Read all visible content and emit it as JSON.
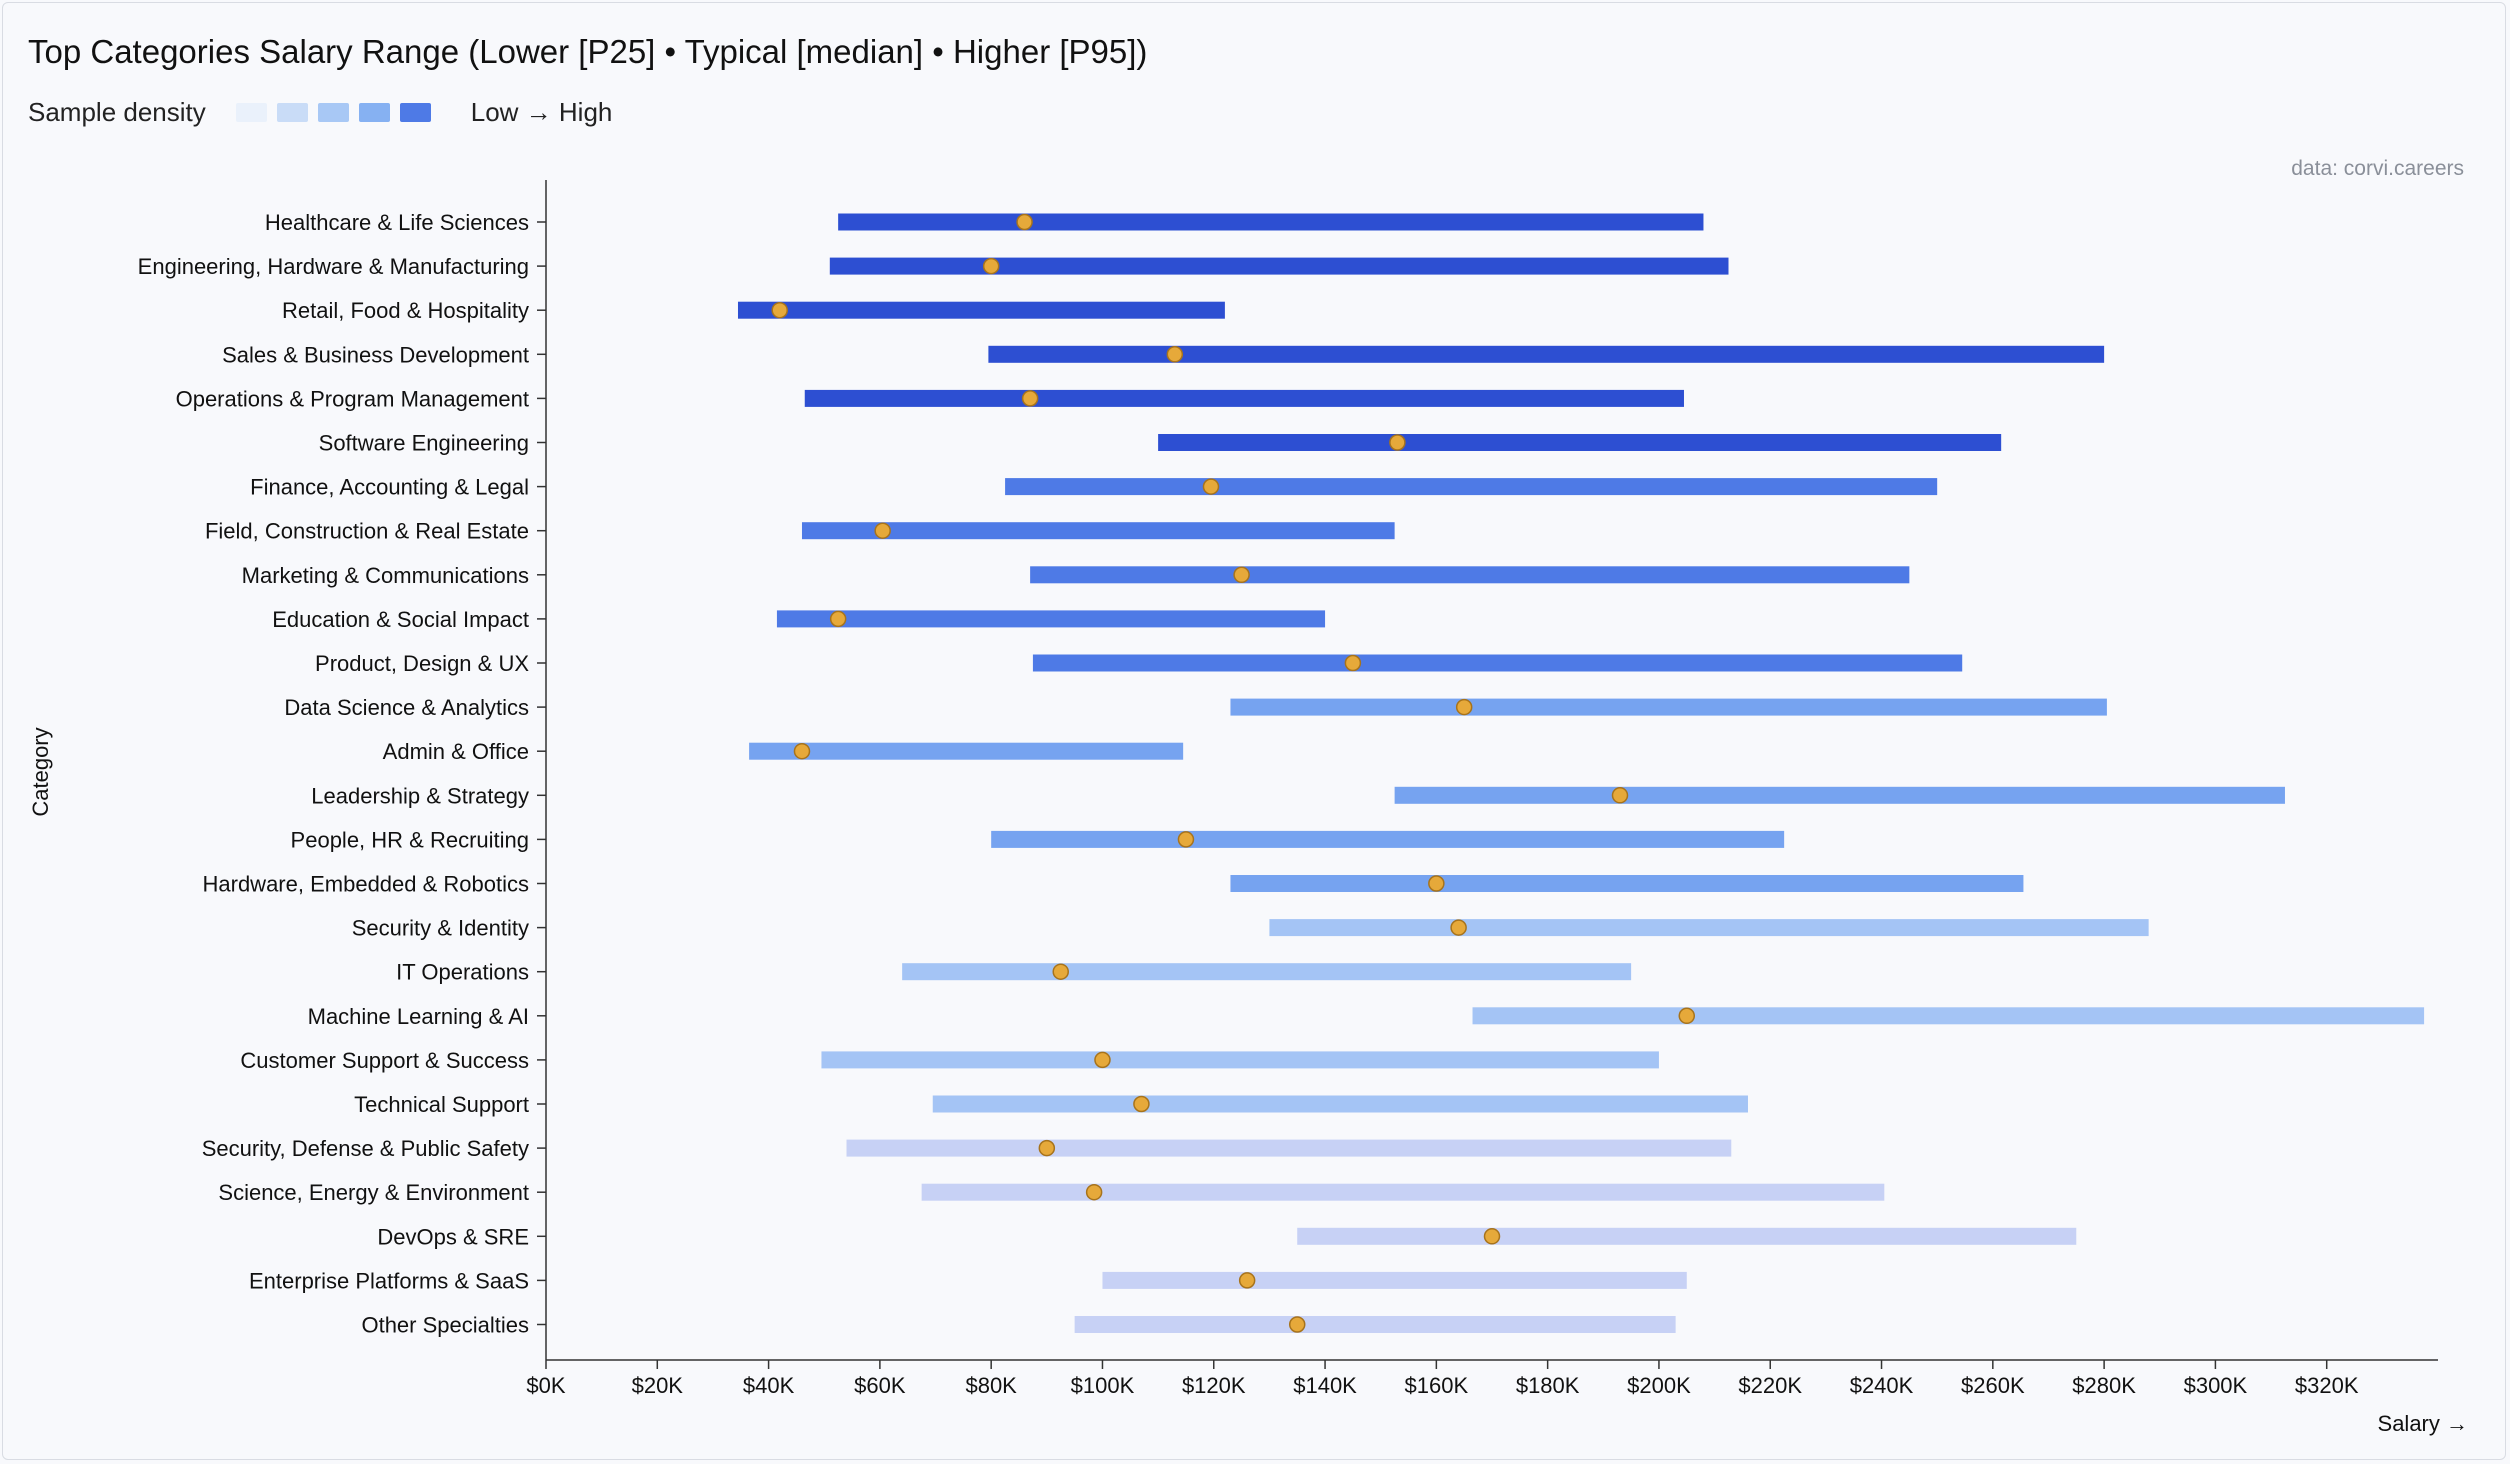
{
  "chart_data": {
    "type": "range",
    "title": "Top Categories Salary Range (Lower [P25] • Typical [median] • Higher [P95])",
    "xlabel": "Salary →",
    "ylabel": "Category",
    "source": "data: corvi.careers",
    "xlim": [
      0,
      340000
    ],
    "xticks": [
      0,
      20000,
      40000,
      60000,
      80000,
      100000,
      120000,
      140000,
      160000,
      180000,
      200000,
      220000,
      240000,
      260000,
      280000,
      300000,
      320000
    ],
    "xtick_labels": [
      "$0K",
      "$20K",
      "$40K",
      "$60K",
      "$80K",
      "$100K",
      "$120K",
      "$140K",
      "$160K",
      "$180K",
      "$200K",
      "$220K",
      "$240K",
      "$260K",
      "$280K",
      "$300K",
      "$320K"
    ],
    "legend": {
      "label": "Sample density",
      "scale_label": "Low → High",
      "colors": [
        "#eaf1fb",
        "#c9dcf7",
        "#a8c8f5",
        "#86b1f2",
        "#4e7ae6"
      ]
    },
    "series": [
      {
        "category": "Healthcare & Life Sciences",
        "p25": 52500,
        "median": 86000,
        "p95": 208000,
        "density": 5,
        "color": "#2d4fd2"
      },
      {
        "category": "Engineering, Hardware & Manufacturing",
        "p25": 51000,
        "median": 80000,
        "p95": 212500,
        "density": 5,
        "color": "#2d4fd2"
      },
      {
        "category": "Retail, Food & Hospitality",
        "p25": 34500,
        "median": 42000,
        "p95": 122000,
        "density": 5,
        "color": "#2d4fd2"
      },
      {
        "category": "Sales & Business Development",
        "p25": 79500,
        "median": 113000,
        "p95": 280000,
        "density": 5,
        "color": "#2d4fd2"
      },
      {
        "category": "Operations & Program Management",
        "p25": 46500,
        "median": 87000,
        "p95": 204500,
        "density": 5,
        "color": "#2d4fd2"
      },
      {
        "category": "Software Engineering",
        "p25": 110000,
        "median": 153000,
        "p95": 261500,
        "density": 5,
        "color": "#2d4fd2"
      },
      {
        "category": "Finance, Accounting & Legal",
        "p25": 82500,
        "median": 119500,
        "p95": 250000,
        "density": 4,
        "color": "#4e7ae6"
      },
      {
        "category": "Field, Construction & Real Estate",
        "p25": 46000,
        "median": 60500,
        "p95": 152500,
        "density": 4,
        "color": "#4e7ae6"
      },
      {
        "category": "Marketing & Communications",
        "p25": 87000,
        "median": 125000,
        "p95": 245000,
        "density": 4,
        "color": "#4e7ae6"
      },
      {
        "category": "Education & Social Impact",
        "p25": 41500,
        "median": 52500,
        "p95": 140000,
        "density": 4,
        "color": "#4e7ae6"
      },
      {
        "category": "Product, Design & UX",
        "p25": 87500,
        "median": 145000,
        "p95": 254500,
        "density": 4,
        "color": "#4e7ae6"
      },
      {
        "category": "Data Science & Analytics",
        "p25": 123000,
        "median": 165000,
        "p95": 280500,
        "density": 3,
        "color": "#76a3f0"
      },
      {
        "category": "Admin & Office",
        "p25": 36500,
        "median": 46000,
        "p95": 114500,
        "density": 3,
        "color": "#76a3f0"
      },
      {
        "category": "Leadership & Strategy",
        "p25": 152500,
        "median": 193000,
        "p95": 312500,
        "density": 3,
        "color": "#76a3f0"
      },
      {
        "category": "People, HR & Recruiting",
        "p25": 80000,
        "median": 115000,
        "p95": 222500,
        "density": 3,
        "color": "#76a3f0"
      },
      {
        "category": "Hardware, Embedded & Robotics",
        "p25": 123000,
        "median": 160000,
        "p95": 265500,
        "density": 3,
        "color": "#76a3f0"
      },
      {
        "category": "Security & Identity",
        "p25": 130000,
        "median": 164000,
        "p95": 288000,
        "density": 2,
        "color": "#a4c4f5"
      },
      {
        "category": "IT Operations",
        "p25": 64000,
        "median": 92500,
        "p95": 195000,
        "density": 2,
        "color": "#a4c4f5"
      },
      {
        "category": "Machine Learning & AI",
        "p25": 166500,
        "median": 205000,
        "p95": 337500,
        "density": 2,
        "color": "#a4c4f5"
      },
      {
        "category": "Customer Support & Success",
        "p25": 49500,
        "median": 100000,
        "p95": 200000,
        "density": 2,
        "color": "#a4c4f5"
      },
      {
        "category": "Technical Support",
        "p25": 69500,
        "median": 107000,
        "p95": 216000,
        "density": 2,
        "color": "#a4c4f5"
      },
      {
        "category": "Security, Defense & Public Safety",
        "p25": 54000,
        "median": 90000,
        "p95": 213000,
        "density": 1,
        "color": "#c7d1f5"
      },
      {
        "category": "Science, Energy & Environment",
        "p25": 67500,
        "median": 98500,
        "p95": 240500,
        "density": 1,
        "color": "#c7d1f5"
      },
      {
        "category": "DevOps & SRE",
        "p25": 135000,
        "median": 170000,
        "p95": 275000,
        "density": 1,
        "color": "#c7d1f5"
      },
      {
        "category": "Enterprise Platforms & SaaS",
        "p25": 100000,
        "median": 126000,
        "p95": 205000,
        "density": 1,
        "color": "#c7d1f5"
      },
      {
        "category": "Other Specialties",
        "p25": 95000,
        "median": 135000,
        "p95": 203000,
        "density": 1,
        "color": "#c7d1f5"
      }
    ],
    "marker_color": "#e6a93a",
    "marker_stroke": "#a7731c",
    "grid": false,
    "legend_position": "top-left"
  }
}
